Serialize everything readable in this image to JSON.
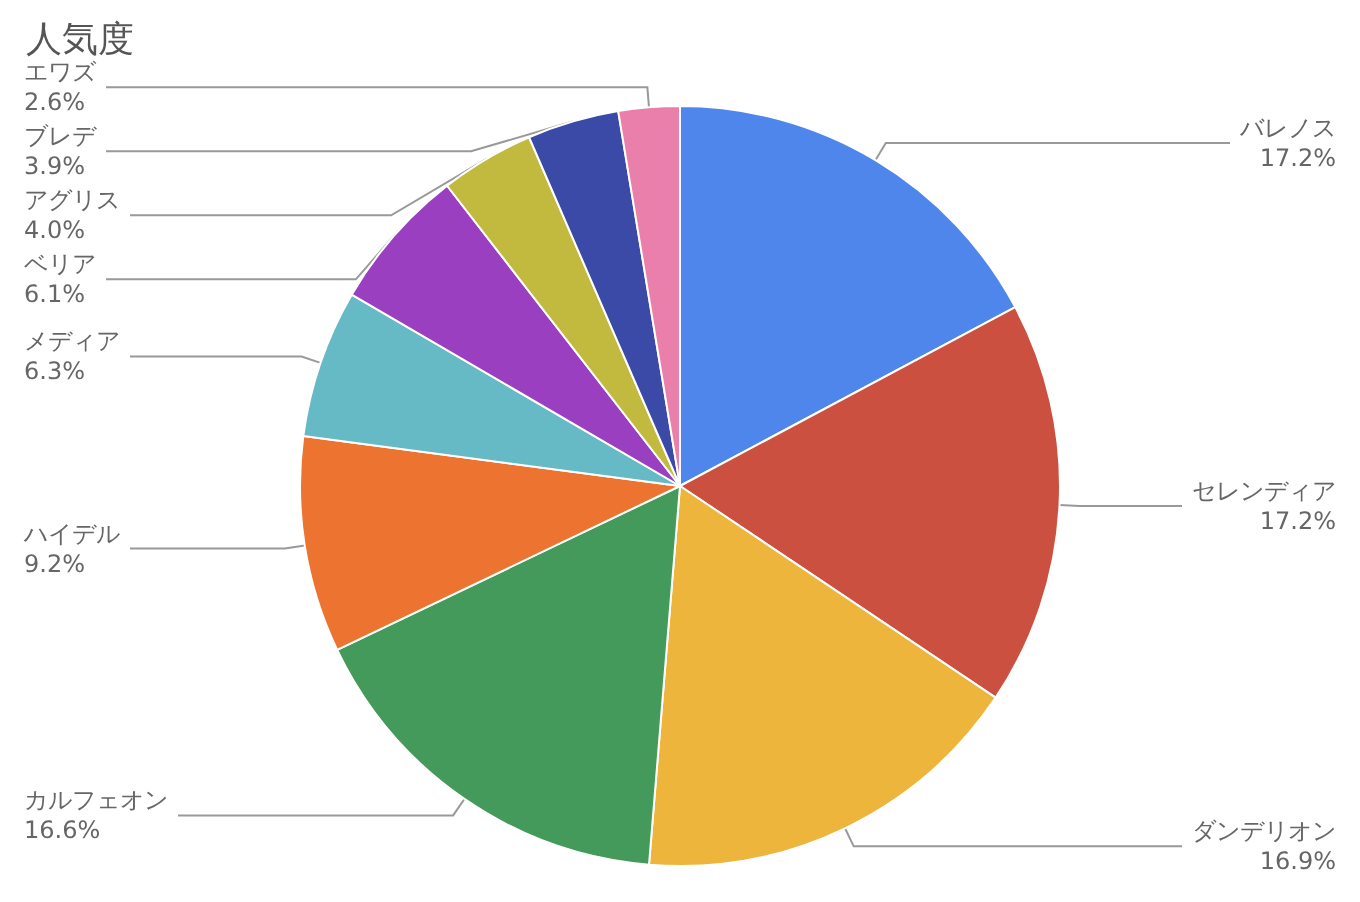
{
  "chart_data": {
    "type": "pie",
    "title": "人気度",
    "categories": [
      "バレノス",
      "セレンディア",
      "ダンデリオン",
      "カルフェオン",
      "ハイデル",
      "メディア",
      "ベリア",
      "アグリス",
      "ブレデ",
      "エワズ"
    ],
    "values": [
      17.2,
      17.2,
      16.9,
      16.6,
      9.2,
      6.3,
      6.1,
      4.0,
      3.9,
      2.6
    ],
    "value_labels": [
      "17.2%",
      "17.2%",
      "16.9%",
      "16.6%",
      "9.2%",
      "6.3%",
      "6.1%",
      "4.0%",
      "3.9%",
      "2.6%"
    ],
    "colors": [
      "#4f86ec",
      "#cc5040",
      "#edb53c",
      "#449a5a",
      "#ec7430",
      "#66bac6",
      "#9a3fbf",
      "#c2ba3e",
      "#3a4aa6",
      "#e97faa"
    ],
    "legend": false
  }
}
